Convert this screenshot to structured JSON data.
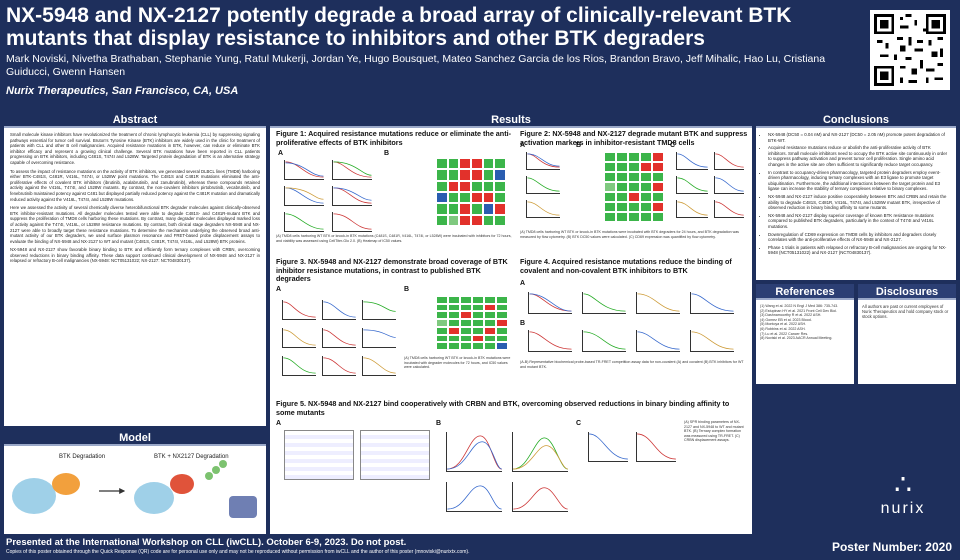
{
  "header": {
    "title": "NX-5948 and NX-2127 potently degrade a broad array of clinically-relevant BTK mutants that display resistance to inhibitors and other BTK degraders",
    "authors": "Mark Noviski, Nivetha Brathaban, Stephanie Yung, Ratul Mukerji, Jordan Ye, Hugo Bousquet, Mateo Sanchez Garcia de los Rios, Brandon Bravo, Jeff Mihalic, Hao Lu, Cristiana Guiducci, Gwenn Hansen",
    "affiliation": "Nurix Therapeutics, San Francisco, CA, USA"
  },
  "sections": {
    "abstract": "Abstract",
    "results": "Results",
    "model": "Model",
    "conclusions": "Conclusions",
    "references": "References",
    "disclosures": "Disclosures"
  },
  "abstract": {
    "p1": "Small molecule kinase inhibitors have revolutionized the treatment of chronic lymphocytic leukemia (CLL) by suppressing signaling pathways essential for tumor cell survival. Bruton's Tyrosine Kinase (BTK) inhibitors are widely used in the clinic for treatment of patients with CLL and other B cell malignancies. Acquired resistance mutations in BTK, however, can reduce or eliminate BTK inhibitor efficacy and represent a growing clinical challenge. Several BTK mutations have been reported in CLL patients progressing on BTK inhibitors, including C481S, T474I and L528W. Targeted protein degradation of BTK is an alternative strategy capable of overcoming resistance.",
    "p2": "To assess the impact of resistance mutations on the activity of BTK inhibitors, we generated several DLBCL lines (TMD8) harboring either BTK-C481S, C481R, V416L, T474I, or L528W point mutations. The C481S and C481R mutations eliminated the anti-proliferative effects of covalent BTK inhibitors (ibrutinib, acalabrutinib, and zanubrutinib), whereas these compounds retained activity against the V416L, T474I, and L528W mutants. By contrast, the non-covalent inhibitors pirtobrutinib, vecabrutinib, and fenebrutinib maintained potency against C481 but displayed partially reduced potency against the C481R mutation and dramatically reduced activity against the V416L, T474I, and L528W mutations.",
    "p3": "Here we assessed the activity of several chemically diverse heterobifunctional BTK degrader molecules against clinically-observed BTK inhibitor-resistant mutations. All degrader molecules tested were able to degrade C481S- and C481R-mutant BTK and suppress the proliferation of TMD8 cells harboring these mutations. By contrast, many degrader molecules displayed marked loss of activity against the T474I, V416L, or L528W resistance mutations. By contrast, both clinical stage degraders NX-5948 and NX-2127 were able to broadly target these resistance mutations. To determine the mechanism underlying the observed broad anti-mutant activity of our BTK degraders, we used surface plasmon resonance and FRET-based probe displacement assays to evaluate the binding of NX-5948 and NX-2127 to WT and mutant (C481S, C481R, T474I, V416L, and L528W) BTK proteins.",
    "p4": "NX-5948 and NX-2127 show favorable binary binding to BTK and efficiently form ternary complexes with CRBN, overcoming observed reductions in binary binding affinity. These data support continued clinical development of NX-5948 and NX-2127 in relapsed or refractory B-cell malignancies (NX-5948: NCT05131022; NX-2127: NCT04830137)."
  },
  "figures": {
    "fig1_title": "Figure 1: Acquired resistance mutations reduce or eliminate the anti-proliferative effects of BTK inhibitors",
    "fig2_title": "Figure 2: NX-5948 and NX-2127 degrade mutant BTK and suppress activation markers in inhibitor-resistant TMD8 cells",
    "fig3_title": "Figure 3. NX-5948 and NX-2127 demonstrate broad coverage of BTK inhibitor resistance mutations, in contrast to published BTK degraders",
    "fig4_title": "Figure 4. Acquired resistance mutations reduce the binding of covalent and non-covalent BTK inhibitors to BTK",
    "fig5_title": "Figure 5. NX-5948 and NX-2127 bind cooperatively with CRBN and BTK, overcoming observed reductions in binary binding affinity to some mutants",
    "fig1_caption": "(A) TMD8 cells harboring WT BTK or knock-in BTK mutations (C481S, C481R, V416L, T474I, or L528W) were incubated with inhibitors for 72 hours, and viability was assessed using CellTiter-Glo 2.0. (B) Heatmap of IC50 values.",
    "fig2_caption": "(A) TMD8 cells harboring WT BTK or knock-in BTK mutations were incubated with BTK degraders for 24 hours, and BTK degradation was measured by flow cytometry. (B) BTK DC50 values were calculated. (C) CD69 expression was quantified by flow cytometry.",
    "fig3_caption": "(A) TMD8 cells harboring WT BTK or knock-in BTK mutations were incubated with degrader molecules for 72 hours, and IC50 values were calculated.",
    "fig4_caption": "(A-B) Representative biochemical probe-based TR-FRET competition assay data for non-covalent (A) and covalent (B) BTK inhibitors for WT and mutant BTK.",
    "fig5_caption": "(A) SPR binding parameters of NX-2127 and NX-5948 to WT and mutant BTK. (B) Ternary complex formation was measured using TR-FRET. (C) CRBN displacement assays."
  },
  "panel_labels": [
    "A",
    "B",
    "C"
  ],
  "conclusions": [
    "NX-5948 (DC50 = 0.04 nM) and NX-2127 (DC50 = 2.05 nM) promote potent degradation of BTK-WT.",
    "Acquired resistance mutations reduce or abolish the anti-proliferative activity of BTK inhibitors. Small molecule inhibitors need to occupy the BTK active site continuously in order to suppress pathway activation and prevent tumor cell proliferation. Single amino acid changes in the active site are often sufficient to significantly reduce target occupancy.",
    "In contrast to occupancy-driven pharmacology, targeted protein degraders employ event-driven pharmacology, inducing ternary complexes with an E3 ligase to promote target ubiquitination. Furthermore, the additional interactions between the target protein and E3 ligase can increase the stability of ternary complexes relative to binary complexes.",
    "NX-5948 and NX-2127 induce positive cooperativity between BTK and CRBN and retain the ability to degrade C481S, C481R, V416L, T474I, and L528W mutant BTK, irrespective of observed reduction in binary binding affinity to some mutants.",
    "NX-5948 and NX-2127 display superior coverage of known BTK resistance mutations compared to published BTK degraders, particularly in the context of T474I and V416L mutations.",
    "Downregulation of CD69 expression on TMD8 cells by inhibitors and degraders closely correlates with the anti-proliferative effects of NX-5948 and NX-2127.",
    "Phase 1 trials in patients with relapsed or refractory B-cell malignancies are ongoing for NX-5948 (NCT05131022) and NX-2127 (NCT04830137)."
  ],
  "references": [
    "(1) Wang et al. 2022 N Engl J Med 386: 735-743.",
    "(2) Estupinan HY et al. 2021 Front Cell Dev Biol.",
    "(3) Dashnamoorthy R et al. 2022 ASH.",
    "(4) Gomez EB et al. 2023 Blood.",
    "(5) Montoya et al. 2022 ASH.",
    "(6) Robbins et al. 2022 ASH.",
    "(7) Lu et al. 2022 Cancer Res.",
    "(8) Noviski et al. 2023 AACR Annual Meeting."
  ],
  "disclosures": "All authors are past or current employees of Nurix Therapeutics and hold company stock or stock options.",
  "model": {
    "label_left": "BTK Degradation",
    "label_right": "BTK + NX2127 Degradation"
  },
  "logo": "nurix",
  "footer": {
    "line1": "Presented at the International Workshop on CLL (iwCLL). October 6-9, 2023. Do not post.",
    "line2": "Copies of this poster obtained through the Quick Response (QR) code are for personal use only and may not be reproduced without permission from iwCLL and the author of this poster (mnoviski@nurixtx.com).",
    "poster_number": "Poster Number: 2020"
  },
  "colors": {
    "navy": "#1e2f5c",
    "heat_green": "#3cb54a",
    "heat_red": "#e2312b",
    "heat_blue": "#2a5db0"
  }
}
